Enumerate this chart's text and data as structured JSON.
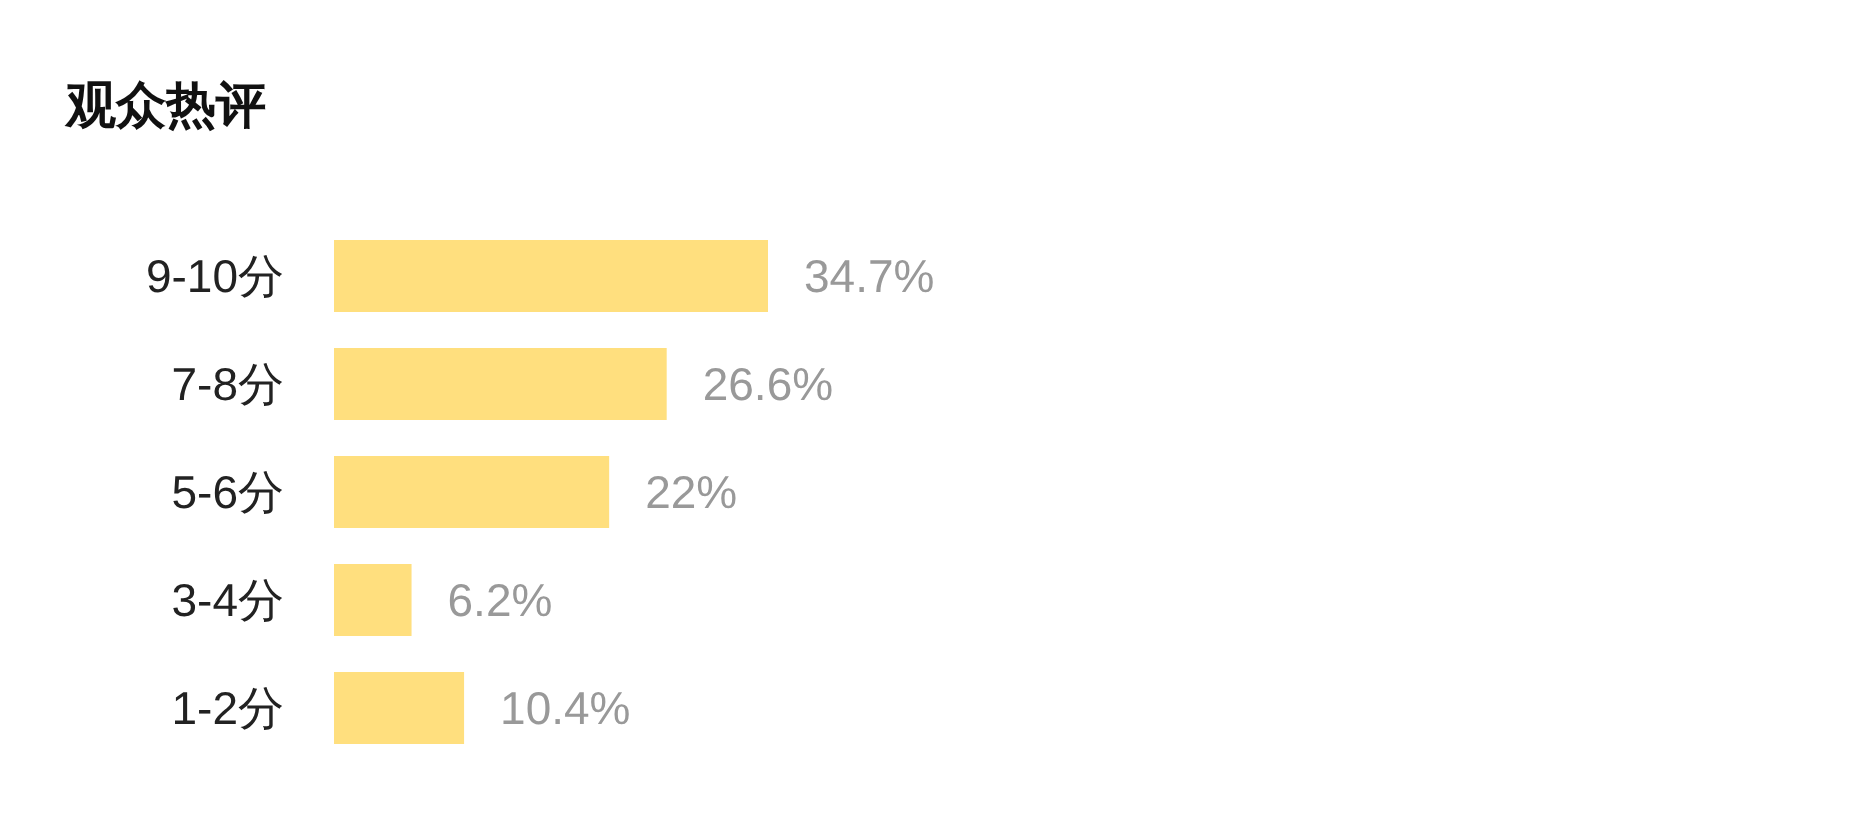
{
  "chart_data": {
    "type": "bar",
    "title": "观众热评",
    "orientation": "horizontal",
    "categories": [
      "9-10分",
      "7-8分",
      "5-6分",
      "3-4分",
      "1-2分"
    ],
    "values": [
      34.7,
      26.6,
      22,
      6.2,
      10.4
    ],
    "value_labels": [
      "34.7%",
      "26.6%",
      "22%",
      "6.2%",
      "10.4%"
    ],
    "color": "#ffdf7e"
  }
}
